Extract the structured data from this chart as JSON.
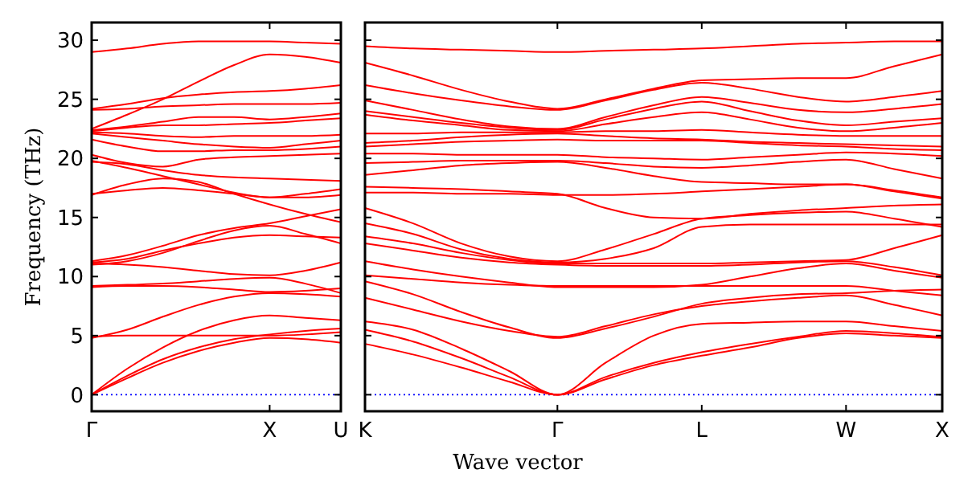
{
  "chart_data": [
    {
      "type": "line",
      "ylabel": "Frequency (THz)",
      "categories": [
        "Γ",
        null,
        null,
        null,
        null,
        "X",
        null,
        "U"
      ],
      "ylim": [
        -1.4,
        31.5
      ],
      "yticks": [
        0,
        5,
        10,
        15,
        20,
        25,
        30
      ],
      "marker": "none",
      "line_style": "solid",
      "ref_lines": [
        {
          "axis": "y",
          "value": 0,
          "color": "#0000ff",
          "line_style": "dotted"
        }
      ],
      "series": [
        {
          "color": "#ff0000",
          "values": [
            0,
            1.4,
            2.7,
            3.7,
            4.4,
            4.8,
            4.7,
            4.4
          ]
        },
        {
          "color": "#ff0000",
          "values": [
            0,
            1.6,
            3.0,
            4.0,
            4.7,
            5.1,
            5.4,
            5.6
          ]
        },
        {
          "color": "#ff0000",
          "values": [
            0,
            2.2,
            4.0,
            5.4,
            6.3,
            6.7,
            6.5,
            6.3
          ]
        },
        {
          "color": "#ff0000",
          "values": [
            4.9,
            5.0,
            5.0,
            5.0,
            5.0,
            5.0,
            5.1,
            5.3
          ]
        },
        {
          "color": "#ff0000",
          "values": [
            4.8,
            5.5,
            6.6,
            7.6,
            8.3,
            8.6,
            8.5,
            8.3
          ]
        },
        {
          "color": "#ff0000",
          "values": [
            9.2,
            9.3,
            9.4,
            9.6,
            9.8,
            9.9,
            9.4,
            8.6
          ]
        },
        {
          "color": "#ff0000",
          "values": [
            9.1,
            9.2,
            9.2,
            9.1,
            8.9,
            8.7,
            8.8,
            9.0
          ]
        },
        {
          "color": "#ff0000",
          "values": [
            11.1,
            11.0,
            10.8,
            10.5,
            10.2,
            10.1,
            10.5,
            11.2
          ]
        },
        {
          "color": "#ff0000",
          "values": [
            11.0,
            11.3,
            12.0,
            13.0,
            13.9,
            14.3,
            13.6,
            12.8
          ]
        },
        {
          "color": "#ff0000",
          "values": [
            11.2,
            11.5,
            12.2,
            12.8,
            13.3,
            13.5,
            13.4,
            13.3
          ]
        },
        {
          "color": "#ff0000",
          "values": [
            11.3,
            11.8,
            12.6,
            13.5,
            14.1,
            14.5,
            15.1,
            15.7
          ]
        },
        {
          "color": "#ff0000",
          "values": [
            17.0,
            17.3,
            17.5,
            17.3,
            17.0,
            16.7,
            17.0,
            17.4
          ]
        },
        {
          "color": "#ff0000",
          "values": [
            16.9,
            17.8,
            18.3,
            18.0,
            17.0,
            16.1,
            15.3,
            14.6
          ]
        },
        {
          "color": "#ff0000",
          "values": [
            19.7,
            19.5,
            19.0,
            18.6,
            18.4,
            18.3,
            18.2,
            18.1
          ]
        },
        {
          "color": "#ff0000",
          "values": [
            19.8,
            19.2,
            18.5,
            17.8,
            17.1,
            16.7,
            16.7,
            16.9
          ]
        },
        {
          "color": "#ff0000",
          "values": [
            20.3,
            19.6,
            19.3,
            19.9,
            20.1,
            20.2,
            20.3,
            20.4
          ]
        },
        {
          "color": "#ff0000",
          "values": [
            21.6,
            21.0,
            20.6,
            20.6,
            20.7,
            20.7,
            20.8,
            21.0
          ]
        },
        {
          "color": "#ff0000",
          "values": [
            22.1,
            21.8,
            21.5,
            21.2,
            21.0,
            20.9,
            21.2,
            21.5
          ]
        },
        {
          "color": "#ff0000",
          "values": [
            22.2,
            22.1,
            21.9,
            21.8,
            21.9,
            21.9,
            21.9,
            22.0
          ]
        },
        {
          "color": "#ff0000",
          "values": [
            22.3,
            22.6,
            22.8,
            22.8,
            22.9,
            23.0,
            23.2,
            23.4
          ]
        },
        {
          "color": "#ff0000",
          "values": [
            22.4,
            22.7,
            23.1,
            23.5,
            23.5,
            23.3,
            23.5,
            23.8
          ]
        },
        {
          "color": "#ff0000",
          "values": [
            22.5,
            23.7,
            25.0,
            26.5,
            27.9,
            28.8,
            28.6,
            28.1
          ]
        },
        {
          "color": "#ff0000",
          "values": [
            24.1,
            24.2,
            24.4,
            24.5,
            24.6,
            24.6,
            24.6,
            24.7
          ]
        },
        {
          "color": "#ff0000",
          "values": [
            24.2,
            24.6,
            25.1,
            25.4,
            25.6,
            25.7,
            25.9,
            26.2
          ]
        },
        {
          "color": "#ff0000",
          "values": [
            29.0,
            29.3,
            29.7,
            29.9,
            29.9,
            29.9,
            29.8,
            29.7
          ]
        }
      ]
    },
    {
      "type": "line",
      "xlabel": "Wave vector",
      "categories": [
        "K",
        null,
        null,
        null,
        "Γ",
        null,
        null,
        "L",
        null,
        null,
        "W",
        null,
        "X"
      ],
      "ylim": [
        -1.4,
        31.5
      ],
      "yticks": [
        {
          "value": 0,
          "label": null
        },
        {
          "value": 5,
          "label": null
        },
        {
          "value": 10,
          "label": null
        },
        {
          "value": 15,
          "label": null
        },
        {
          "value": 20,
          "label": null
        },
        {
          "value": 25,
          "label": null
        },
        {
          "value": 30,
          "label": null
        }
      ],
      "tick_labels": "x",
      "marker": "none",
      "line_style": "solid",
      "ref_lines": [
        {
          "axis": "y",
          "value": 0,
          "color": "#0000ff",
          "line_style": "dotted"
        }
      ],
      "series": [
        {
          "color": "#ff0000",
          "values": [
            4.3,
            3.4,
            2.3,
            1.1,
            0,
            1.3,
            2.5,
            3.3,
            4.0,
            4.8,
            5.2,
            5.0,
            4.8
          ]
        },
        {
          "color": "#ff0000",
          "values": [
            5.5,
            4.5,
            3.1,
            1.5,
            0,
            1.5,
            2.7,
            3.6,
            4.3,
            4.9,
            5.4,
            5.2,
            4.9
          ]
        },
        {
          "color": "#ff0000",
          "values": [
            6.2,
            5.5,
            3.9,
            2.0,
            0,
            2.7,
            5.0,
            6.0,
            6.1,
            6.2,
            6.2,
            5.8,
            5.4
          ]
        },
        {
          "color": "#ff0000",
          "values": [
            8.2,
            7.2,
            6.2,
            5.4,
            4.9,
            5.8,
            6.8,
            7.5,
            7.9,
            8.2,
            8.4,
            7.6,
            6.7
          ]
        },
        {
          "color": "#ff0000",
          "values": [
            9.6,
            8.5,
            7.0,
            5.7,
            4.8,
            5.6,
            6.6,
            7.7,
            8.2,
            8.5,
            8.6,
            8.8,
            8.9
          ]
        },
        {
          "color": "#ff0000",
          "values": [
            10.1,
            9.8,
            9.5,
            9.3,
            9.2,
            9.2,
            9.2,
            9.2,
            9.2,
            9.2,
            9.2,
            8.8,
            8.4
          ]
        },
        {
          "color": "#ff0000",
          "values": [
            11.3,
            10.6,
            10.0,
            9.5,
            9.1,
            9.1,
            9.1,
            9.3,
            10.0,
            10.7,
            11.1,
            10.5,
            9.9
          ]
        },
        {
          "color": "#ff0000",
          "values": [
            12.8,
            12.2,
            11.6,
            11.2,
            11.0,
            10.9,
            10.9,
            10.9,
            11.0,
            11.2,
            11.3,
            10.8,
            10.1
          ]
        },
        {
          "color": "#ff0000",
          "values": [
            13.4,
            12.8,
            12.0,
            11.4,
            11.1,
            11.1,
            11.1,
            11.1,
            11.2,
            11.3,
            11.4,
            12.4,
            13.5
          ]
        },
        {
          "color": "#ff0000",
          "values": [
            14.5,
            13.6,
            12.3,
            11.5,
            11.2,
            11.5,
            12.4,
            14.2,
            14.4,
            14.4,
            14.4,
            14.4,
            14.4
          ]
        },
        {
          "color": "#ff0000",
          "values": [
            15.8,
            14.5,
            12.8,
            11.7,
            11.3,
            12.3,
            13.6,
            14.9,
            15.2,
            15.4,
            15.5,
            14.9,
            14.2
          ]
        },
        {
          "color": "#ff0000",
          "values": [
            17.1,
            17.1,
            17.0,
            17.0,
            16.9,
            16.9,
            17.0,
            17.2,
            17.4,
            17.6,
            17.8,
            17.3,
            16.7
          ]
        },
        {
          "color": "#ff0000",
          "values": [
            17.6,
            17.5,
            17.4,
            17.2,
            17.0,
            15.8,
            15.0,
            14.9,
            15.3,
            15.6,
            15.8,
            16.0,
            16.1
          ]
        },
        {
          "color": "#ff0000",
          "values": [
            18.6,
            19.0,
            19.4,
            19.6,
            19.7,
            19.2,
            18.5,
            18.0,
            17.9,
            17.8,
            17.8,
            17.2,
            16.6
          ]
        },
        {
          "color": "#ff0000",
          "values": [
            19.6,
            19.7,
            19.8,
            19.8,
            19.8,
            19.6,
            19.3,
            19.2,
            19.4,
            19.7,
            19.9,
            19.1,
            18.3
          ]
        },
        {
          "color": "#ff0000",
          "values": [
            20.4,
            20.4,
            20.3,
            20.3,
            20.3,
            20.1,
            20.0,
            19.9,
            20.1,
            20.3,
            20.5,
            20.4,
            20.2
          ]
        },
        {
          "color": "#ff0000",
          "values": [
            21.0,
            21.2,
            21.4,
            21.5,
            21.6,
            21.5,
            21.5,
            21.5,
            21.3,
            21.1,
            21.0,
            20.8,
            20.7
          ]
        },
        {
          "color": "#ff0000",
          "values": [
            21.3,
            21.5,
            21.8,
            22.0,
            22.1,
            21.9,
            21.7,
            21.6,
            21.4,
            21.3,
            21.2,
            21.1,
            21.0
          ]
        },
        {
          "color": "#ff0000",
          "values": [
            22.1,
            22.1,
            22.2,
            22.2,
            22.2,
            22.3,
            22.3,
            22.4,
            22.2,
            22.0,
            21.9,
            21.9,
            21.9
          ]
        },
        {
          "color": "#ff0000",
          "values": [
            23.7,
            23.2,
            22.8,
            22.4,
            22.3,
            22.9,
            23.5,
            23.9,
            23.3,
            22.6,
            22.3,
            22.6,
            23.0
          ]
        },
        {
          "color": "#ff0000",
          "values": [
            24.0,
            23.5,
            23.0,
            22.6,
            22.4,
            23.3,
            24.2,
            24.8,
            24.0,
            23.2,
            22.8,
            23.1,
            23.4
          ]
        },
        {
          "color": "#ff0000",
          "values": [
            24.9,
            24.1,
            23.3,
            22.7,
            22.5,
            23.5,
            24.5,
            25.2,
            24.7,
            24.1,
            23.9,
            24.2,
            24.6
          ]
        },
        {
          "color": "#ff0000",
          "values": [
            26.2,
            25.5,
            24.9,
            24.4,
            24.1,
            24.9,
            25.8,
            26.4,
            25.9,
            25.2,
            24.8,
            25.2,
            25.7
          ]
        },
        {
          "color": "#ff0000",
          "values": [
            28.1,
            27.0,
            25.8,
            24.8,
            24.2,
            25.0,
            25.9,
            26.6,
            26.7,
            26.8,
            26.8,
            27.8,
            28.8
          ]
        },
        {
          "color": "#ff0000",
          "values": [
            29.5,
            29.3,
            29.2,
            29.1,
            29.0,
            29.1,
            29.2,
            29.3,
            29.5,
            29.7,
            29.8,
            29.9,
            29.9
          ]
        }
      ]
    }
  ]
}
